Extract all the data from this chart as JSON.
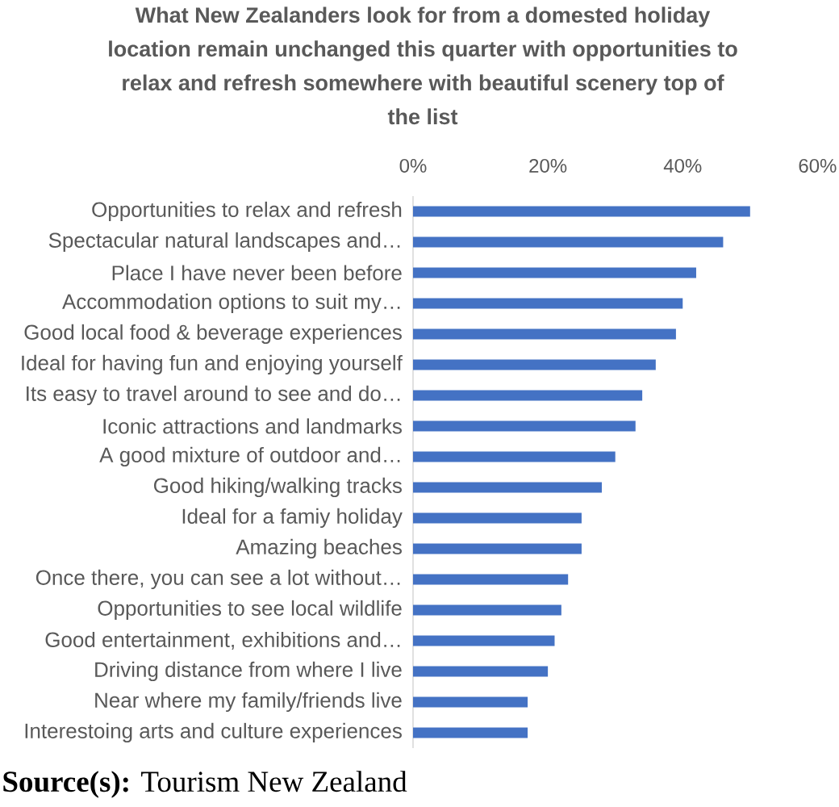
{
  "chart_data": {
    "type": "bar",
    "orientation": "horizontal",
    "title": "What New Zealanders look for from a domested holiday location remain unchanged this quarter with opportunities to relax and refresh somewhere with beautiful scenery top of the list",
    "categories": [
      "Opportunities to relax and refresh",
      "Spectacular natural landscapes and…",
      "Place I have never been before",
      "Accommodation options to suit my…",
      "Good local food & beverage experiences",
      "Ideal for having fun and enjoying yourself",
      "Its easy to travel around to see and do…",
      "Iconic attractions and landmarks",
      "A good mixture of outdoor and…",
      "Good hiking/walking tracks",
      "Ideal for a famiy holiday",
      "Amazing beaches",
      "Once there, you can see a lot without…",
      "Opportunities to see local wildlife",
      "Good entertainment, exhibitions and…",
      "Driving distance from where I live",
      "Near where my family/friends live",
      "Interestoing arts and culture experiences"
    ],
    "values": [
      50,
      46,
      42,
      40,
      39,
      36,
      34,
      33,
      30,
      28,
      25,
      25,
      23,
      22,
      21,
      20,
      17,
      17
    ],
    "color": "#4472c4",
    "xlim": [
      0,
      60
    ],
    "xticks": [
      {
        "value": 0,
        "label": "0%"
      },
      {
        "value": 20,
        "label": "20%"
      },
      {
        "value": 40,
        "label": "40%"
      },
      {
        "value": 60,
        "label": "60%"
      }
    ],
    "annotations": [
      "**Source(s):** Tourism New Zealand"
    ]
  }
}
